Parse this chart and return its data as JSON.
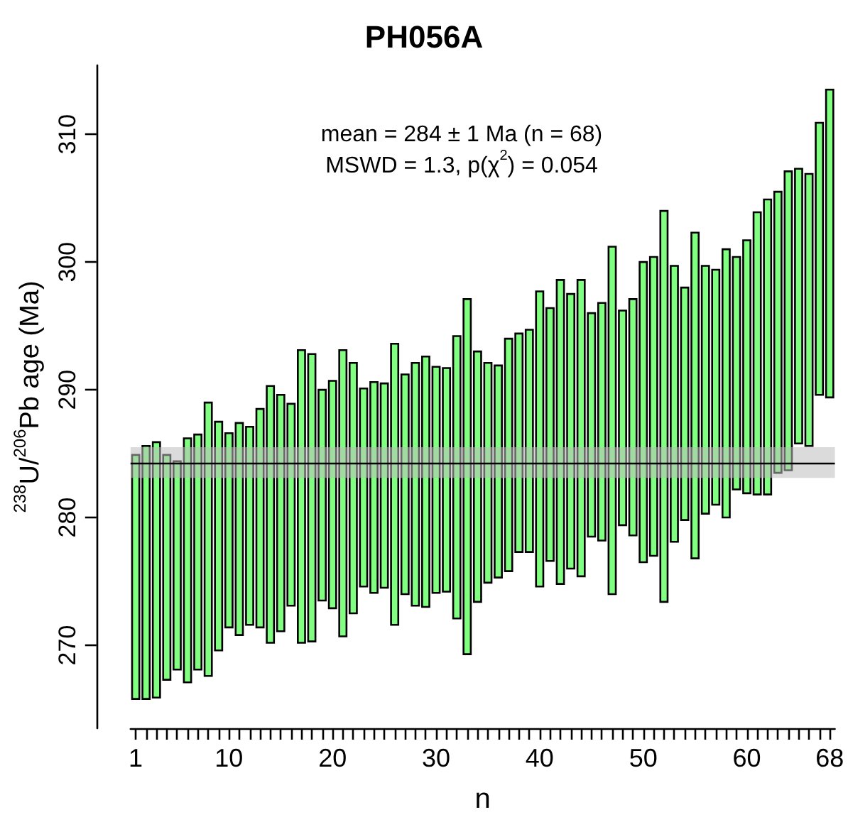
{
  "chart_data": {
    "type": "bar",
    "title": "PH056A",
    "xlabel": "n",
    "ylabel": "$^{238}$U/$^{206}$Pb age (Ma)",
    "annotations": [
      "mean = 284 ± 1 Ma (n = 68)",
      "MSWD = 1.3, p(χ$^{2}$) = 0.054"
    ],
    "x": [
      1,
      2,
      3,
      4,
      5,
      6,
      7,
      8,
      9,
      10,
      11,
      12,
      13,
      14,
      15,
      16,
      17,
      18,
      19,
      20,
      21,
      22,
      23,
      24,
      25,
      26,
      27,
      28,
      29,
      30,
      31,
      32,
      33,
      34,
      35,
      36,
      37,
      38,
      39,
      40,
      41,
      42,
      43,
      44,
      45,
      46,
      47,
      48,
      49,
      50,
      51,
      52,
      53,
      54,
      55,
      56,
      57,
      58,
      59,
      60,
      61,
      62,
      63,
      64,
      65,
      66,
      67,
      68
    ],
    "base": [
      265.8,
      265.8,
      265.9,
      267.3,
      268.1,
      267.1,
      268.1,
      267.6,
      269.6,
      271.4,
      270.8,
      271.6,
      271.4,
      270.2,
      271.1,
      273.1,
      270.2,
      270.3,
      273.5,
      272.9,
      270.7,
      272.5,
      274.6,
      274.1,
      274.5,
      271.6,
      274.0,
      273.1,
      273.0,
      274.1,
      274.2,
      272.1,
      269.3,
      273.4,
      274.9,
      275.3,
      275.8,
      277.3,
      277.3,
      274.6,
      276.6,
      274.8,
      276.0,
      275.4,
      278.5,
      278.2,
      274.0,
      279.4,
      278.6,
      276.5,
      277.0,
      273.4,
      278.1,
      279.8,
      276.8,
      280.3,
      281.0,
      280.0,
      282.2,
      281.9,
      281.8,
      281.8,
      283.5,
      283.7,
      285.8,
      285.6,
      289.6,
      289.4
    ],
    "values": [
      19.1,
      19.8,
      20.0,
      17.6,
      16.3,
      19.1,
      18.4,
      21.4,
      17.9,
      15.2,
      16.6,
      15.5,
      17.1,
      20.1,
      18.5,
      15.8,
      22.9,
      22.5,
      16.5,
      17.8,
      22.4,
      19.6,
      15.5,
      16.5,
      16.0,
      22.0,
      17.2,
      19.0,
      19.6,
      17.7,
      17.5,
      22.1,
      27.8,
      19.6,
      17.2,
      16.6,
      18.2,
      17.1,
      17.4,
      23.1,
      19.8,
      23.8,
      21.5,
      23.2,
      17.5,
      18.6,
      27.2,
      16.8,
      18.5,
      23.5,
      23.4,
      30.6,
      21.6,
      18.2,
      25.5,
      19.4,
      18.4,
      21.0,
      18.2,
      19.8,
      22.1,
      23.1,
      22.0,
      23.4,
      21.5,
      21.3,
      21.3,
      24.1
    ],
    "color": "#80ff80",
    "ref_lines": [
      {
        "axis": "y",
        "value": 284.3,
        "color": "#000000"
      }
    ],
    "bands": [
      {
        "axis": "y",
        "from": 283.1,
        "to": 285.5,
        "color": "#bebebe"
      }
    ],
    "xlim": [
      0.5,
      68.5
    ],
    "xticks": [
      1,
      {
        "value": 2,
        "label": null
      },
      {
        "value": 3,
        "label": null
      },
      {
        "value": 4,
        "label": null
      },
      {
        "value": 5,
        "label": null
      },
      {
        "value": 6,
        "label": null
      },
      {
        "value": 7,
        "label": null
      },
      {
        "value": 8,
        "label": null
      },
      {
        "value": 9,
        "label": null
      },
      10,
      {
        "value": 11,
        "label": null
      },
      {
        "value": 12,
        "label": null
      },
      {
        "value": 13,
        "label": null
      },
      {
        "value": 14,
        "label": null
      },
      {
        "value": 15,
        "label": null
      },
      {
        "value": 16,
        "label": null
      },
      {
        "value": 17,
        "label": null
      },
      {
        "value": 18,
        "label": null
      },
      {
        "value": 19,
        "label": null
      },
      20,
      {
        "value": 21,
        "label": null
      },
      {
        "value": 22,
        "label": null
      },
      {
        "value": 23,
        "label": null
      },
      {
        "value": 24,
        "label": null
      },
      {
        "value": 25,
        "label": null
      },
      {
        "value": 26,
        "label": null
      },
      {
        "value": 27,
        "label": null
      },
      {
        "value": 28,
        "label": null
      },
      {
        "value": 29,
        "label": null
      },
      30,
      {
        "value": 31,
        "label": null
      },
      {
        "value": 32,
        "label": null
      },
      {
        "value": 33,
        "label": null
      },
      {
        "value": 34,
        "label": null
      },
      {
        "value": 35,
        "label": null
      },
      {
        "value": 36,
        "label": null
      },
      {
        "value": 37,
        "label": null
      },
      {
        "value": 38,
        "label": null
      },
      {
        "value": 39,
        "label": null
      },
      40,
      {
        "value": 41,
        "label": null
      },
      {
        "value": 42,
        "label": null
      },
      {
        "value": 43,
        "label": null
      },
      {
        "value": 44,
        "label": null
      },
      {
        "value": 45,
        "label": null
      },
      {
        "value": 46,
        "label": null
      },
      {
        "value": 47,
        "label": null
      },
      {
        "value": 48,
        "label": null
      },
      {
        "value": 49,
        "label": null
      },
      50,
      {
        "value": 51,
        "label": null
      },
      {
        "value": 52,
        "label": null
      },
      {
        "value": 53,
        "label": null
      },
      {
        "value": 54,
        "label": null
      },
      {
        "value": 55,
        "label": null
      },
      {
        "value": 56,
        "label": null
      },
      {
        "value": 57,
        "label": null
      },
      {
        "value": 58,
        "label": null
      },
      {
        "value": 59,
        "label": null
      },
      60,
      {
        "value": 61,
        "label": null
      },
      {
        "value": 62,
        "label": null
      },
      {
        "value": 63,
        "label": null
      },
      {
        "value": 64,
        "label": null
      },
      {
        "value": 65,
        "label": null
      },
      {
        "value": 66,
        "label": null
      },
      {
        "value": 67,
        "label": null
      },
      68
    ],
    "ylim": [
      263.5,
      315.4
    ],
    "yticks": [
      270,
      280,
      290,
      300,
      310
    ],
    "grid": false
  }
}
